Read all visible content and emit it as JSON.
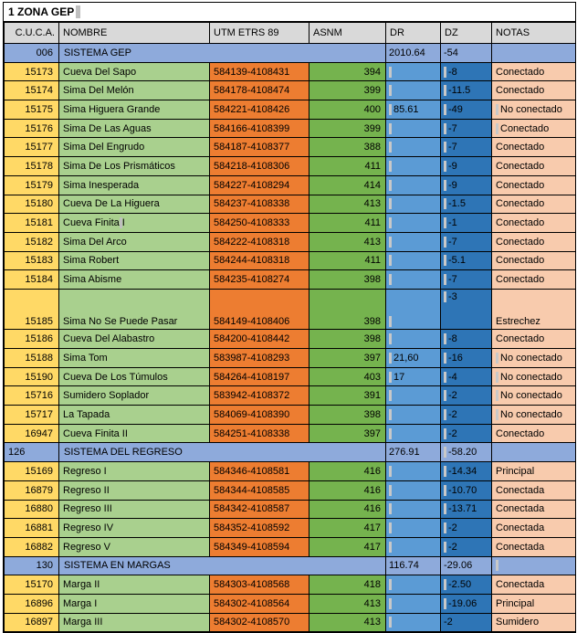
{
  "title": "1 ZONA GEP",
  "colors": {
    "cuca": "#FFD966",
    "nombre": "#A9D08E",
    "utm": "#ED7D31",
    "asnm": "#75B34E",
    "dr": "#5B9BD5",
    "dz": "#2E75B6",
    "notas": "#F8CBAD",
    "section": "#8EAADB",
    "header": "#D9D9D9"
  },
  "table": {
    "headers": {
      "cuca": "C.U.C.A.",
      "nombre": "NOMBRE",
      "utm": "UTM ETRS 89",
      "asnm": "ASNM",
      "dr": "DR",
      "dz": "DZ",
      "notas": "NOTAS"
    },
    "rows": [
      {
        "type": "section",
        "cuca": "006",
        "cuca_align": "right",
        "nombre": "SISTEMA GEP",
        "utm": "",
        "asnm": "",
        "dr": "2010.64",
        "dz": "-54",
        "notas": "",
        "ticks": []
      },
      {
        "type": "data",
        "cuca": "15173",
        "nombre": "Cueva Del Sapo",
        "utm": "584139-4108431",
        "asnm": "394",
        "dr": "",
        "dz": "-8",
        "notas": "Conectado",
        "ticks": [
          "dr",
          "dz"
        ]
      },
      {
        "type": "data",
        "cuca": "15174",
        "nombre": "Sima Del Melón",
        "utm": "584178-4108474",
        "asnm": "399",
        "dr": "",
        "dz": "-11.5",
        "notas": "Conectado",
        "ticks": [
          "dr",
          "dz"
        ]
      },
      {
        "type": "data",
        "cuca": "15175",
        "nombre": "Sima Higuera Grande",
        "utm": "584221-4108426",
        "asnm": "400",
        "dr": "85.61",
        "dz": "-49",
        "notas": "No conectado",
        "ticks": [
          "dr",
          "dz",
          "notas"
        ]
      },
      {
        "type": "data",
        "cuca": "15176",
        "nombre": "Sima De Las Aguas",
        "utm": "584166-4108399",
        "asnm": "399",
        "dr": "",
        "dz": "-7",
        "notas": "Conectado",
        "ticks": [
          "dr",
          "dz",
          "notas"
        ]
      },
      {
        "type": "data",
        "cuca": "15177",
        "nombre": "Sima Del Engrudo",
        "utm": "584187-4108377",
        "asnm": "388",
        "dr": "",
        "dz": "-7",
        "notas": "Conectado",
        "ticks": [
          "dr",
          "dz"
        ]
      },
      {
        "type": "data",
        "cuca": "15178",
        "nombre": "Sima De Los Prismáticos",
        "utm": "584218-4108306",
        "asnm": "411",
        "dr": "",
        "dz": "-9",
        "notas": "Conectado",
        "ticks": [
          "dr",
          "dz"
        ]
      },
      {
        "type": "data",
        "cuca": "15179",
        "nombre": "Sima Inesperada",
        "utm": "584227-4108294",
        "asnm": "414",
        "dr": "",
        "dz": "-9",
        "notas": "Conectado",
        "ticks": [
          "dr",
          "dz"
        ]
      },
      {
        "type": "data",
        "cuca": "15180",
        "nombre": "Cueva De La Higuera",
        "utm": "584237-4108338",
        "asnm": "413",
        "dr": "",
        "dz": "-1.5",
        "notas": "Conectado",
        "ticks": [
          "dr",
          "dz"
        ]
      },
      {
        "type": "data",
        "cuca": "15181",
        "nombre": "Cueva Finita I",
        "utm": "584250-4108333",
        "asnm": "411",
        "dr": "",
        "dz": "-1",
        "notas": "Conectado",
        "ticks": [
          "dr",
          "dz"
        ],
        "nombre_cursor": true
      },
      {
        "type": "data",
        "cuca": "15182",
        "nombre": "Sima Del Arco",
        "utm": "584222-4108318",
        "asnm": "413",
        "dr": "",
        "dz": "-7",
        "notas": "Conectado",
        "ticks": [
          "dr",
          "dz"
        ]
      },
      {
        "type": "data",
        "cuca": "15183",
        "nombre": "Sima Robert",
        "utm": "584244-4108318",
        "asnm": "411",
        "dr": "",
        "dz": "-5.1",
        "notas": "Conectado",
        "ticks": [
          "dr",
          "dz"
        ]
      },
      {
        "type": "data",
        "cuca": "15184",
        "nombre": "Sima Abisme",
        "utm": "584235-4108274",
        "asnm": "398",
        "dr": "",
        "dz": "-7",
        "notas": "Conectado",
        "ticks": [
          "dr",
          "dz"
        ]
      },
      {
        "type": "data",
        "cuca": "15185",
        "nombre": "Sima No Se Puede Pasar",
        "utm": "584149-4108406",
        "asnm": "398",
        "dr": "",
        "dz": "-3",
        "notas": "Estrechez",
        "ticks": [
          "dr",
          "dz"
        ],
        "tall": true
      },
      {
        "type": "data",
        "cuca": "15186",
        "nombre": "Cueva Del Alabastro",
        "utm": "584200-4108442",
        "asnm": "398",
        "dr": "",
        "dz": "-8",
        "notas": "Conectado",
        "ticks": [
          "dr",
          "dz"
        ]
      },
      {
        "type": "data",
        "cuca": "15188",
        "nombre": "Sima Tom",
        "utm": "583987-4108293",
        "asnm": "397",
        "dr": "21,60",
        "dz": "-16",
        "notas": "No conectado",
        "ticks": [
          "dr",
          "dz",
          "notas"
        ]
      },
      {
        "type": "data",
        "cuca": "15190",
        "nombre": "Cueva De Los Túmulos",
        "utm": "584264-4108197",
        "asnm": "403",
        "dr": "17",
        "dz": "-4",
        "notas": "No conectado",
        "ticks": [
          "dr",
          "dz",
          "notas"
        ]
      },
      {
        "type": "data",
        "cuca": "15716",
        "nombre": "Sumidero Soplador",
        "utm": "583942-4108372",
        "asnm": "391",
        "dr": "",
        "dz": "-2",
        "notas": "No conectado",
        "ticks": [
          "dr",
          "dz",
          "notas"
        ]
      },
      {
        "type": "data",
        "cuca": "15717",
        "nombre": "La Tapada",
        "utm": "584069-4108390",
        "asnm": "398",
        "dr": "",
        "dz": "-2",
        "notas": "No conectado",
        "ticks": [
          "dr",
          "dz",
          "notas"
        ]
      },
      {
        "type": "data",
        "cuca": "16947",
        "nombre": "Cueva Finita II",
        "utm": "584251-4108338",
        "asnm": "397",
        "dr": "",
        "dz": "-2",
        "notas": "Conectado",
        "ticks": [
          "dr",
          "dz"
        ]
      },
      {
        "type": "section",
        "cuca": "126",
        "cuca_align": "left",
        "nombre": "SISTEMA DEL REGRESO",
        "utm": "",
        "asnm": "",
        "dr": "276.91",
        "dz": "-58.20",
        "notas": "",
        "ticks": [
          "dz"
        ]
      },
      {
        "type": "data",
        "cuca": "15169",
        "nombre": "Regreso I",
        "utm": "584346-4108581",
        "asnm": "416",
        "dr": "",
        "dz": "-14.34",
        "notas": "Principal",
        "ticks": [
          "dr",
          "dz"
        ]
      },
      {
        "type": "data",
        "cuca": "16879",
        "nombre": "Regreso II",
        "utm": "584344-4108585",
        "asnm": "416",
        "dr": "",
        "dz": "-10.70",
        "notas": "Conectada",
        "ticks": [
          "dr",
          "dz"
        ]
      },
      {
        "type": "data",
        "cuca": "16880",
        "nombre": "Regreso III",
        "utm": "584342-4108587",
        "asnm": "416",
        "dr": "",
        "dz": "-13.71",
        "notas": "Conectada",
        "ticks": [
          "dr",
          "dz"
        ]
      },
      {
        "type": "data",
        "cuca": "16881",
        "nombre": "Regreso IV",
        "utm": "584352-4108592",
        "asnm": "417",
        "dr": "",
        "dz": "-2",
        "notas": "Conectada",
        "ticks": [
          "dr",
          "dz"
        ]
      },
      {
        "type": "data",
        "cuca": "16882",
        "nombre": "Regreso V",
        "utm": "584349-4108594",
        "asnm": "417",
        "dr": "",
        "dz": "-2",
        "notas": "Conectada",
        "ticks": [
          "dr",
          "dz"
        ]
      },
      {
        "type": "section",
        "cuca": "130",
        "cuca_align": "right",
        "nombre": "SISTEMA EN MARGAS",
        "utm": "",
        "asnm": "",
        "dr": "116.74",
        "dz": "-29.06",
        "notas": "",
        "ticks": [
          "notas"
        ]
      },
      {
        "type": "data",
        "cuca": "15170",
        "nombre": "Marga II",
        "utm": "584303-4108568",
        "asnm": "418",
        "dr": "",
        "dz": "-2.50",
        "notas": "Conectada",
        "ticks": [
          "dr",
          "dz"
        ]
      },
      {
        "type": "data",
        "cuca": "16896",
        "nombre": "Marga I",
        "utm": "584302-4108564",
        "asnm": "413",
        "dr": "",
        "dz": "-19.06",
        "notas": "Principal",
        "ticks": [
          "dr",
          "dz"
        ]
      },
      {
        "type": "data",
        "cuca": "16897",
        "nombre": "Marga III",
        "utm": "584302-4108570",
        "asnm": "413",
        "dr": "",
        "dz": "-2",
        "notas": "Sumidero",
        "ticks": [
          "dr"
        ]
      }
    ]
  }
}
